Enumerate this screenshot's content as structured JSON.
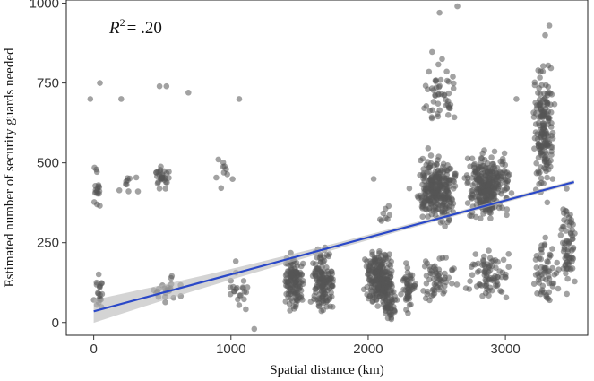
{
  "chart_data": {
    "type": "scatter",
    "xlabel": "Spatial distance (km)",
    "ylabel": "Estimated number of security guards needed",
    "xlim": [
      -200,
      3600
    ],
    "ylim": [
      -40,
      1010
    ],
    "x_ticks": [
      0,
      1000,
      2000,
      3000
    ],
    "x_tick_labels": [
      "0",
      "1000",
      "2000",
      "3000"
    ],
    "y_ticks": [
      0,
      250,
      500,
      750,
      1000
    ],
    "y_tick_labels": [
      "0",
      "250",
      "500",
      "750",
      "1000"
    ],
    "annotation": {
      "r": "R",
      "sup": "2",
      "value": "= .20"
    },
    "grid": false,
    "point_color": "#555555",
    "point_opacity": 0.55,
    "fit_color": "#2a48c8",
    "band_color": "#b8b8b8",
    "fit_line": {
      "x": [
        0,
        3500
      ],
      "y": [
        35,
        440
      ]
    },
    "clusters": [
      {
        "x": [
          -10,
          60
        ],
        "y": [
          310,
          520
        ],
        "n": 18
      },
      {
        "x": [
          -10,
          80
        ],
        "y": [
          20,
          170
        ],
        "n": 20
      },
      {
        "x": [
          150,
          330
        ],
        "y": [
          380,
          490
        ],
        "n": 10
      },
      {
        "x": [
          400,
          560
        ],
        "y": [
          400,
          520
        ],
        "n": 14
      },
      {
        "x": [
          450,
          560
        ],
        "y": [
          430,
          480
        ],
        "n": 16
      },
      {
        "x": [
          350,
          700
        ],
        "y": [
          40,
          170
        ],
        "n": 22
      },
      {
        "x": [
          850,
          1100
        ],
        "y": [
          380,
          540
        ],
        "n": 10
      },
      {
        "x": [
          950,
          1130
        ],
        "y": [
          0,
          200
        ],
        "n": 22
      },
      {
        "x": [
          1390,
          1530
        ],
        "y": [
          20,
          240
        ],
        "n": 130
      },
      {
        "x": [
          1580,
          1760
        ],
        "y": [
          0,
          260
        ],
        "n": 150
      },
      {
        "x": [
          1960,
          2200
        ],
        "y": [
          20,
          250
        ],
        "n": 240
      },
      {
        "x": [
          2100,
          2220
        ],
        "y": [
          -10,
          100
        ],
        "n": 40
      },
      {
        "x": [
          2050,
          2180
        ],
        "y": [
          300,
          380
        ],
        "n": 8
      },
      {
        "x": [
          2230,
          2350
        ],
        "y": [
          20,
          200
        ],
        "n": 50
      },
      {
        "x": [
          2350,
          2650
        ],
        "y": [
          280,
          560
        ],
        "n": 280
      },
      {
        "x": [
          2380,
          2650
        ],
        "y": [
          560,
          880
        ],
        "n": 50
      },
      {
        "x": [
          2380,
          2650
        ],
        "y": [
          20,
          260
        ],
        "n": 60
      },
      {
        "x": [
          2700,
          3050
        ],
        "y": [
          300,
          560
        ],
        "n": 300
      },
      {
        "x": [
          2700,
          3050
        ],
        "y": [
          20,
          260
        ],
        "n": 80
      },
      {
        "x": [
          3200,
          3360
        ],
        "y": [
          350,
          850
        ],
        "n": 180
      },
      {
        "x": [
          3200,
          3400
        ],
        "y": [
          20,
          280
        ],
        "n": 60
      },
      {
        "x": [
          3380,
          3520
        ],
        "y": [
          50,
          460
        ],
        "n": 70
      }
    ],
    "points": [
      {
        "x": -25,
        "y": 700
      },
      {
        "x": 45,
        "y": 750
      },
      {
        "x": 200,
        "y": 700
      },
      {
        "x": 480,
        "y": 740
      },
      {
        "x": 530,
        "y": 740
      },
      {
        "x": 690,
        "y": 720
      },
      {
        "x": 1060,
        "y": 700
      },
      {
        "x": 1170,
        "y": -20
      },
      {
        "x": 2520,
        "y": 970
      },
      {
        "x": 3320,
        "y": 930
      },
      {
        "x": 3290,
        "y": 900
      },
      {
        "x": 3080,
        "y": 700
      },
      {
        "x": 2300,
        "y": 420
      },
      {
        "x": 2040,
        "y": 450
      },
      {
        "x": 2650,
        "y": 990
      }
    ]
  }
}
